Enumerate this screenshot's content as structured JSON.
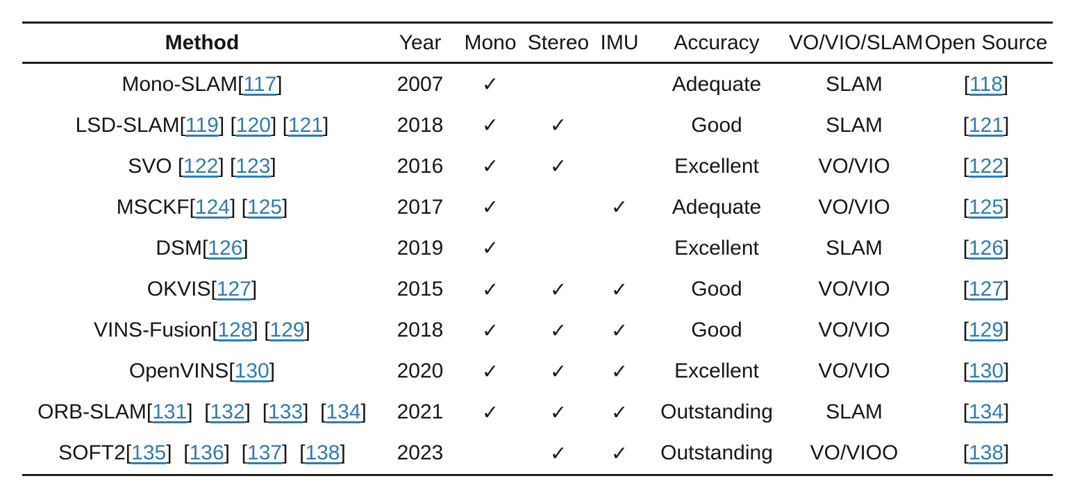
{
  "table": {
    "columns": [
      {
        "label": "Method"
      },
      {
        "label": "Year"
      },
      {
        "label": "Mono"
      },
      {
        "label": "Stereo"
      },
      {
        "label": "IMU"
      },
      {
        "label": "Accuracy"
      },
      {
        "label": "VO/VIO/SLAM"
      },
      {
        "label": "Open Source"
      }
    ],
    "checkmark_glyph": "✓",
    "link_color": "#2e7cb0",
    "text_color": "#161616",
    "rule_color": "#1f1f1f",
    "rows": [
      {
        "method": [
          {
            "t": "Mono-SLAM"
          },
          {
            "c": "117"
          }
        ],
        "year": "2007",
        "mono": true,
        "stereo": false,
        "imu": false,
        "accuracy": "Adequate",
        "type": "SLAM",
        "open_source": [
          {
            "c": "118"
          }
        ]
      },
      {
        "method": [
          {
            "t": "LSD-SLAM"
          },
          {
            "c": "119"
          },
          {
            "t": " "
          },
          {
            "c": "120"
          },
          {
            "t": " "
          },
          {
            "c": "121"
          }
        ],
        "year": "2018",
        "mono": true,
        "stereo": true,
        "imu": false,
        "accuracy": "Good",
        "type": "SLAM",
        "open_source": [
          {
            "c": "121"
          }
        ]
      },
      {
        "method": [
          {
            "t": "SVO "
          },
          {
            "c": "122"
          },
          {
            "t": " "
          },
          {
            "c": "123"
          }
        ],
        "year": "2016",
        "mono": true,
        "stereo": true,
        "imu": false,
        "accuracy": "Excellent",
        "type": "VO/VIO",
        "open_source": [
          {
            "c": "122"
          }
        ]
      },
      {
        "method": [
          {
            "t": "MSCKF"
          },
          {
            "c": "124"
          },
          {
            "t": " "
          },
          {
            "c": "125"
          }
        ],
        "year": "2017",
        "mono": true,
        "stereo": false,
        "imu": true,
        "accuracy": "Adequate",
        "type": "VO/VIO",
        "open_source": [
          {
            "c": "125"
          }
        ]
      },
      {
        "method": [
          {
            "t": "DSM"
          },
          {
            "c": "126"
          }
        ],
        "year": "2019",
        "mono": true,
        "stereo": false,
        "imu": false,
        "accuracy": "Excellent",
        "type": "SLAM",
        "open_source": [
          {
            "c": "126"
          }
        ]
      },
      {
        "method": [
          {
            "t": "OKVIS"
          },
          {
            "c": "127"
          }
        ],
        "year": "2015",
        "mono": true,
        "stereo": true,
        "imu": true,
        "accuracy": "Good",
        "type": "VO/VIO",
        "open_source": [
          {
            "c": "127"
          }
        ]
      },
      {
        "method": [
          {
            "t": "VINS-Fusion"
          },
          {
            "c": "128"
          },
          {
            "t": " "
          },
          {
            "c": "129"
          }
        ],
        "year": "2018",
        "mono": true,
        "stereo": true,
        "imu": true,
        "accuracy": "Good",
        "type": "VO/VIO",
        "open_source": [
          {
            "c": "129"
          }
        ]
      },
      {
        "method": [
          {
            "t": "OpenVINS"
          },
          {
            "c": "130"
          }
        ],
        "year": "2020",
        "mono": true,
        "stereo": true,
        "imu": true,
        "accuracy": "Excellent",
        "type": "VO/VIO",
        "open_source": [
          {
            "c": "130"
          }
        ]
      },
      {
        "method": [
          {
            "t": "ORB-SLAM"
          },
          {
            "c": "131"
          },
          {
            "t": "  "
          },
          {
            "c": "132"
          },
          {
            "t": "  "
          },
          {
            "c": "133"
          },
          {
            "t": "  "
          },
          {
            "c": "134"
          }
        ],
        "year": "2021",
        "mono": true,
        "stereo": true,
        "imu": true,
        "accuracy": "Outstanding",
        "type": "SLAM",
        "open_source": [
          {
            "c": "134"
          }
        ]
      },
      {
        "method": [
          {
            "t": "SOFT2"
          },
          {
            "c": "135"
          },
          {
            "t": "  "
          },
          {
            "c": "136"
          },
          {
            "t": "  "
          },
          {
            "c": "137"
          },
          {
            "t": "  "
          },
          {
            "c": "138"
          }
        ],
        "year": "2023",
        "mono": false,
        "stereo": true,
        "imu": true,
        "accuracy": "Outstanding",
        "type": "VO/VIOO",
        "open_source": [
          {
            "c": "138"
          }
        ]
      }
    ]
  }
}
